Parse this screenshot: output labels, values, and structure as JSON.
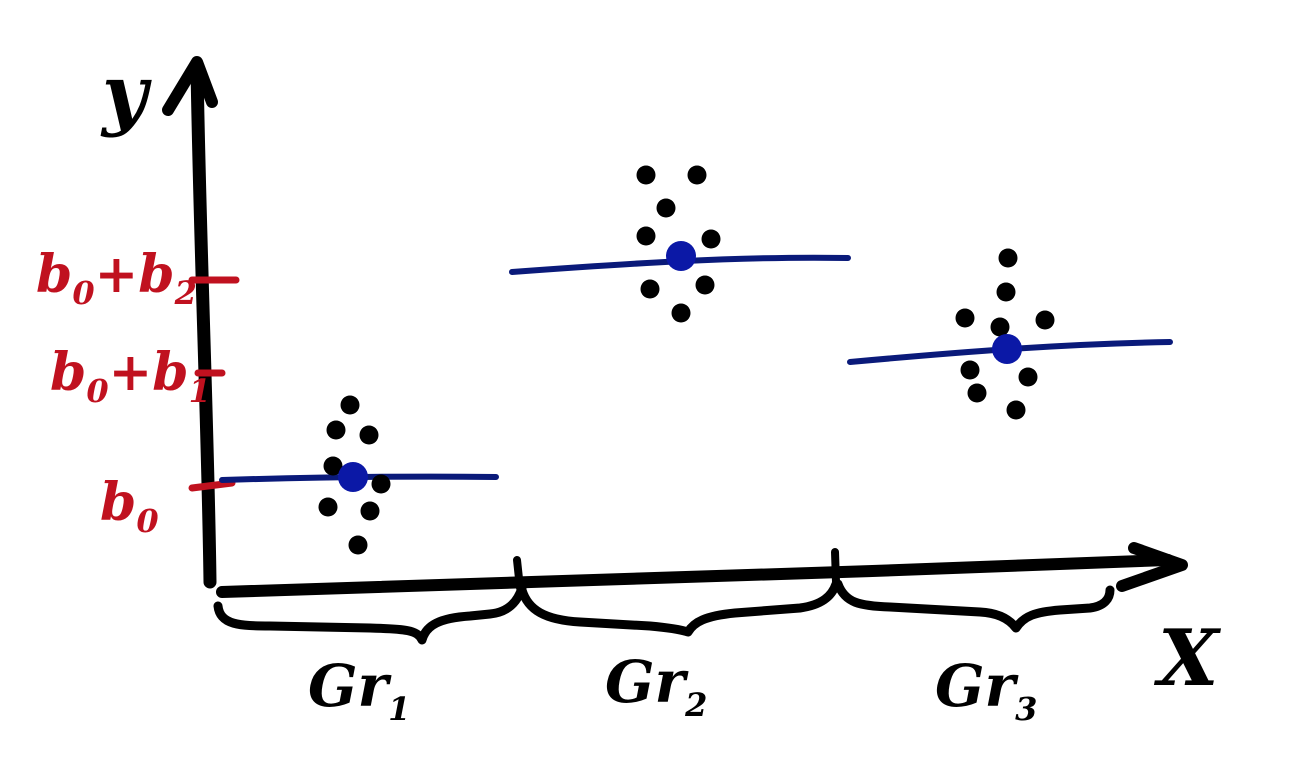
{
  "colors": {
    "ink": "#000000",
    "tick_red": "#c0111f",
    "mean_line": "#0a1a7a",
    "mean_dot": "#0b18a6"
  },
  "axes": {
    "x_label": "X",
    "y_label": "y"
  },
  "y_ticks": [
    {
      "label": "b₀",
      "base": "b",
      "sub": "0",
      "rest": "",
      "rest_sub": ""
    },
    {
      "label": "b₀+b₁",
      "base": "b",
      "sub": "0",
      "rest": "+b",
      "rest_sub": "1"
    },
    {
      "label": "b₀+b₂",
      "base": "b",
      "sub": "0",
      "rest": "+b",
      "rest_sub": "2"
    }
  ],
  "groups": [
    {
      "label": "Gr₁",
      "base": "Gr",
      "sub": "1"
    },
    {
      "label": "Gr₂",
      "base": "Gr",
      "sub": "2"
    },
    {
      "label": "Gr₃",
      "base": "Gr",
      "sub": "3"
    }
  ]
}
